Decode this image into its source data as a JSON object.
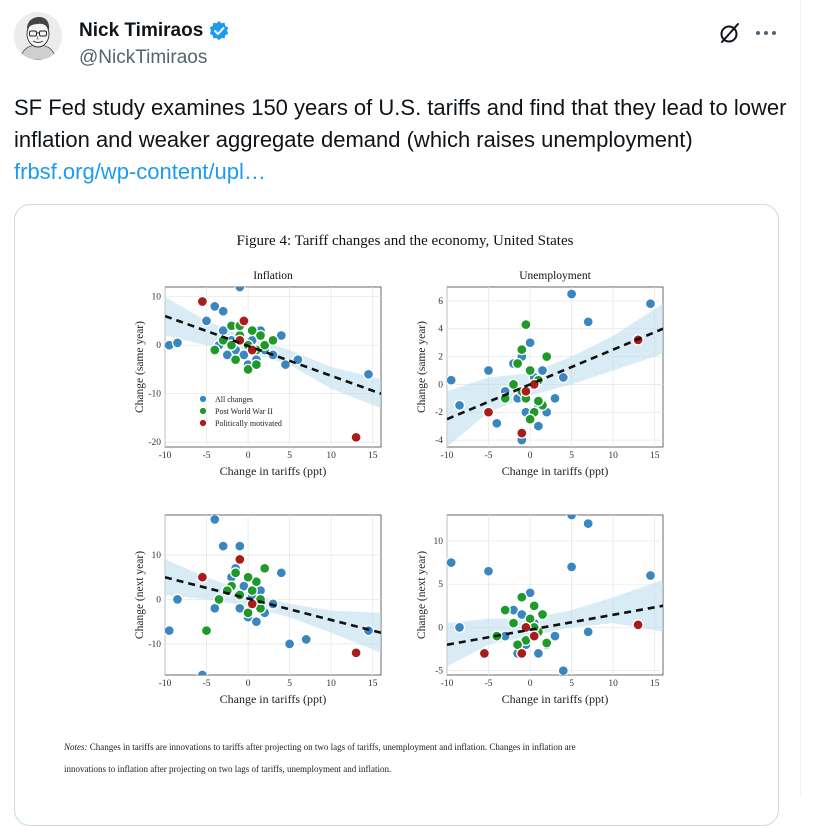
{
  "tweet": {
    "author_name": "Nick Timiraos",
    "handle": "@NickTimiraos",
    "text": "SF Fed study examines 150 years of U.S. tariffs and find that they lead to lower inflation and weaker aggregate demand (which raises unemployment) ",
    "link_text": "frbsf.org/wp-content/upl…",
    "icons": [
      "verified-badge-icon",
      "grok-icon",
      "more-icon"
    ],
    "colors": {
      "link": "#1d9bf0",
      "verified": "#1d9bf0",
      "handle": "#536471"
    }
  },
  "figure": {
    "title": "Figure 4:  Tariff changes and the economy, United States",
    "notes_label": "Notes:",
    "notes_line1": " Changes in tariffs are innovations to tariffs after projecting on two lags of tariffs, unemployment and inflation.  Changes in inflation are",
    "notes_line2": "innovations to inflation after projecting on two lags of tariffs, unemployment and inflation.",
    "legend": [
      {
        "label": "All changes",
        "color": "#3a87c0"
      },
      {
        "label": "Post World War II",
        "color": "#1f9a2a"
      },
      {
        "label": "Politically motivated",
        "color": "#a81c1c"
      }
    ]
  },
  "chart_data": [
    {
      "type": "scatter",
      "title": "Inflation",
      "xlabel": "Change in tariffs (ppt)",
      "ylabel": "Change (same year)",
      "xlim": [
        -10,
        16
      ],
      "ylim": [
        -21,
        12
      ],
      "xticks": [
        -10,
        -5,
        0,
        5,
        10,
        15
      ],
      "yticks": [
        10,
        0,
        -10,
        -20
      ],
      "fit_line": {
        "x": [
          -10,
          16
        ],
        "y": [
          6,
          -10
        ]
      },
      "ci_band": {
        "x": [
          -10,
          -5,
          0,
          5,
          10,
          16
        ],
        "upper": [
          10,
          5,
          1.5,
          -1,
          -4.5,
          -7
        ],
        "lower": [
          2,
          0,
          -1.5,
          -4,
          -9,
          -13
        ]
      },
      "legend_placement": "bottom-left",
      "series": [
        {
          "name": "All changes",
          "color": "#3a87c0",
          "x": [
            -9.5,
            -8.5,
            -5,
            -4,
            -3,
            -3,
            -2,
            -1.5,
            -1,
            -0.5,
            0,
            0.5,
            1,
            1.5,
            2,
            3,
            4,
            4.5,
            6,
            14.5,
            -1,
            -3.5,
            -2.5
          ],
          "y": [
            0,
            0.5,
            5,
            8,
            7,
            3,
            1,
            -1,
            2,
            -2,
            -4,
            1,
            -3,
            3,
            -1,
            -2,
            2,
            -4,
            -3,
            -6,
            12,
            0,
            -2
          ]
        },
        {
          "name": "Post World War II",
          "color": "#1f9a2a",
          "x": [
            -4,
            -3,
            -2,
            -1,
            -0.5,
            0,
            0.5,
            1,
            1.5,
            -1.5,
            0,
            1,
            2,
            3,
            -2,
            -1
          ],
          "y": [
            -1,
            1,
            4,
            2,
            5,
            0,
            3,
            -1,
            2,
            -3,
            -5,
            -4,
            0,
            1,
            0,
            4
          ]
        },
        {
          "name": "Politically motivated",
          "color": "#a81c1c",
          "x": [
            -5.5,
            -1,
            0.5,
            -0.5,
            13
          ],
          "y": [
            9,
            1,
            -1,
            5,
            -19
          ]
        }
      ]
    },
    {
      "type": "scatter",
      "title": "Unemployment",
      "xlabel": "Change in tariffs (ppt)",
      "ylabel": "Change (same year)",
      "xlim": [
        -10,
        16
      ],
      "ylim": [
        -4.5,
        7
      ],
      "xticks": [
        -10,
        -5,
        0,
        5,
        10,
        15
      ],
      "yticks": [
        6,
        4,
        2,
        0,
        -2,
        -4
      ],
      "fit_line": {
        "x": [
          -10,
          16
        ],
        "y": [
          -2.5,
          4
        ]
      },
      "ci_band": {
        "x": [
          -10,
          -5,
          0,
          5,
          10,
          16
        ],
        "upper": [
          -0.5,
          0.5,
          0.8,
          2,
          3.5,
          5.8
        ],
        "lower": [
          -4.5,
          -2,
          -0.8,
          0,
          1,
          2.2
        ]
      },
      "series": [
        {
          "name": "All changes",
          "color": "#3a87c0",
          "x": [
            -9.5,
            -8.5,
            -5,
            -4,
            -3,
            -2,
            -1.5,
            -1,
            -0.5,
            0,
            0.5,
            1,
            1.5,
            2,
            3,
            4,
            5,
            7,
            14.5,
            -1,
            1
          ],
          "y": [
            0.3,
            -1.5,
            1,
            -2.8,
            -0.5,
            1.5,
            -1,
            2,
            -2,
            3,
            0.5,
            -1.5,
            1,
            -2,
            -1,
            0.5,
            6.5,
            4.5,
            5.8,
            -4,
            -3
          ]
        },
        {
          "name": "Post World War II",
          "color": "#1f9a2a",
          "x": [
            -3,
            -2,
            -1.5,
            -1,
            -0.5,
            0,
            0.5,
            1,
            1.5,
            2,
            -1,
            0,
            -0.5,
            1
          ],
          "y": [
            -1,
            0,
            1.5,
            -0.5,
            4.3,
            1,
            -2,
            0.3,
            -1.5,
            2,
            2.5,
            -2.5,
            -1,
            -1.2
          ]
        },
        {
          "name": "Politically motivated",
          "color": "#a81c1c",
          "x": [
            -5,
            -1,
            0.5,
            -0.5,
            13
          ],
          "y": [
            -2,
            -3.5,
            0,
            -0.5,
            3.2
          ]
        }
      ]
    },
    {
      "type": "scatter",
      "title": "",
      "xlabel": "Change in tariffs (ppt)",
      "ylabel": "Change (next year)",
      "xlim": [
        -10,
        16
      ],
      "ylim": [
        -17,
        19
      ],
      "xticks": [
        -10,
        -5,
        0,
        5,
        10,
        15
      ],
      "yticks": [
        10,
        0,
        -10
      ],
      "fit_line": {
        "x": [
          -10,
          16
        ],
        "y": [
          5,
          -7.5
        ]
      },
      "ci_band": {
        "x": [
          -10,
          -5,
          0,
          5,
          10,
          16
        ],
        "upper": [
          9,
          5,
          1.5,
          -1,
          -2.5,
          -3
        ],
        "lower": [
          1,
          0,
          -1.5,
          -4,
          -7.5,
          -12
        ]
      },
      "series": [
        {
          "name": "All changes",
          "color": "#3a87c0",
          "x": [
            -9.5,
            -8.5,
            -5.5,
            -4,
            -3,
            -2,
            -1.5,
            -1,
            -0.5,
            0,
            0.5,
            1,
            1.5,
            2,
            3,
            4,
            5,
            7,
            14.5,
            -4,
            -1
          ],
          "y": [
            -7,
            0,
            -17,
            18,
            12,
            5,
            7,
            -2,
            3,
            -4,
            1,
            -5,
            2,
            -3,
            -1,
            6,
            -10,
            -9,
            -7,
            -2,
            12
          ]
        },
        {
          "name": "Post World War II",
          "color": "#1f9a2a",
          "x": [
            -5,
            -3.5,
            -2,
            -1.5,
            -1,
            0,
            0.5,
            1,
            1.5,
            -2.5,
            0,
            1.5,
            2
          ],
          "y": [
            -7,
            0,
            3,
            6,
            1,
            -3,
            2,
            4,
            -2,
            2,
            5,
            0,
            7
          ]
        },
        {
          "name": "Politically motivated",
          "color": "#a81c1c",
          "x": [
            -5.5,
            -1,
            0.5,
            13
          ],
          "y": [
            5,
            9,
            -1,
            -12
          ]
        }
      ]
    },
    {
      "type": "scatter",
      "title": "",
      "xlabel": "Change in tariffs (ppt)",
      "ylabel": "Change (next year)",
      "xlim": [
        -10,
        16
      ],
      "ylim": [
        -5.5,
        13
      ],
      "xticks": [
        -10,
        -5,
        0,
        5,
        10,
        15
      ],
      "yticks": [
        10,
        5,
        0,
        -5
      ],
      "fit_line": {
        "x": [
          -10,
          16
        ],
        "y": [
          -2,
          2.5
        ]
      },
      "ci_band": {
        "x": [
          -10,
          -5,
          0,
          5,
          10,
          16
        ],
        "upper": [
          0.5,
          1,
          1,
          2,
          3.5,
          5.5
        ],
        "lower": [
          -4.5,
          -2,
          -1,
          0,
          0.5,
          -0.5
        ]
      },
      "series": [
        {
          "name": "All changes",
          "color": "#3a87c0",
          "x": [
            -9.5,
            -8.5,
            -5,
            -3,
            -2,
            -1.5,
            -1,
            -0.5,
            0,
            0.5,
            1,
            1.5,
            2,
            3,
            4,
            5,
            7,
            14.5,
            -1,
            5,
            7
          ],
          "y": [
            7.5,
            0,
            6.5,
            -1,
            2,
            -3,
            3.5,
            -2,
            4,
            0.5,
            -3,
            1.5,
            -2,
            -1,
            -5,
            7,
            -0.5,
            6,
            1.5,
            13,
            12
          ]
        },
        {
          "name": "Post World War II",
          "color": "#1f9a2a",
          "x": [
            -4,
            -3,
            -2,
            -1,
            -0.5,
            0,
            0.5,
            1,
            1.5,
            -1.5,
            0.5,
            2
          ],
          "y": [
            -1,
            2,
            0.5,
            3.5,
            -1.5,
            1,
            2.5,
            -0.5,
            1.5,
            -2,
            0,
            -1.8
          ]
        },
        {
          "name": "Politically motivated",
          "color": "#a81c1c",
          "x": [
            -5.5,
            -1,
            0.5,
            -0.5,
            13
          ],
          "y": [
            -3,
            -3,
            -1,
            0,
            0.3
          ]
        }
      ]
    }
  ]
}
